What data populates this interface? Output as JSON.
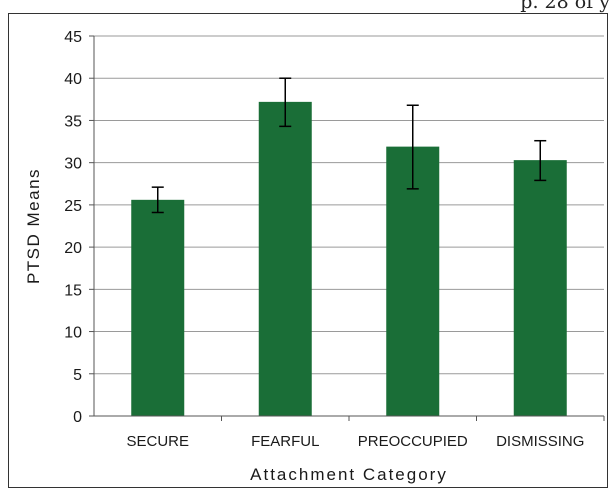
{
  "page": {
    "header_fragment": "p. 28 of y"
  },
  "colors": {
    "bar": "#1a6e37",
    "gridline": "#9a9a9a",
    "axis": "#555555",
    "error_bar": "#000000",
    "text": "#1a1a1a"
  },
  "chart_data": {
    "type": "bar",
    "categories": [
      "SECURE",
      "FEARFUL",
      "PREOCCUPIED",
      "DISMISSING"
    ],
    "values": [
      25.6,
      37.2,
      31.9,
      30.3
    ],
    "error_low": [
      24.1,
      34.3,
      26.9,
      27.9
    ],
    "error_high": [
      27.1,
      40.0,
      36.8,
      32.6
    ],
    "xlabel": "Attachment Category",
    "ylabel": "PTSD Means",
    "ylim": [
      0,
      45
    ],
    "yticks": [
      0,
      5,
      10,
      15,
      20,
      25,
      30,
      35,
      40,
      45
    ],
    "grid": "horizontal",
    "legend": "none"
  }
}
